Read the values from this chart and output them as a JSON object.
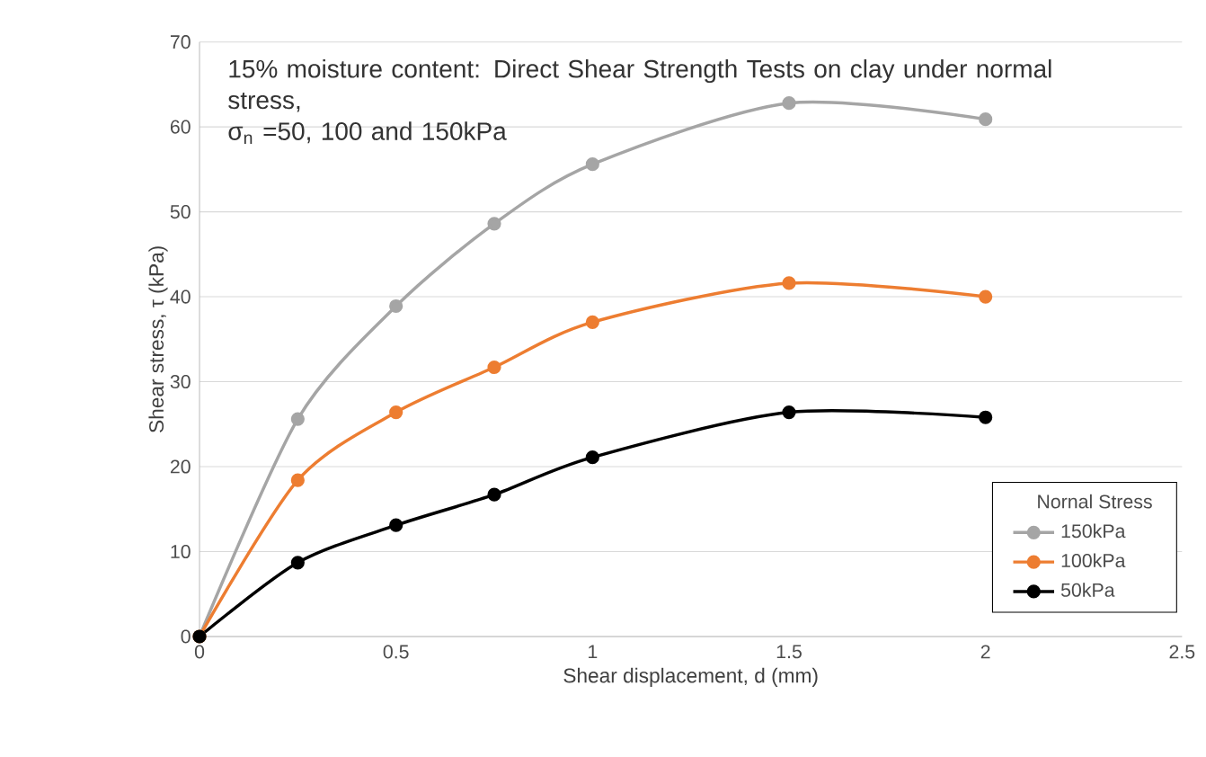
{
  "chart_data": {
    "type": "line",
    "title": "15% moisture content: Direct Shear Strength Tests on clay under normal stress,",
    "subtitle": "σ$_{n}$ =50, 100 and 150kPa",
    "xlabel": "Shear displacement, d (mm)",
    "ylabel": "Shear stress, τ (kPa)",
    "legend_title": "Nornal Stress",
    "x": [
      0,
      0.25,
      0.5,
      0.75,
      1,
      1.5,
      2
    ],
    "series": [
      {
        "name": "150kPa",
        "color": "#a5a5a5",
        "values": [
          0,
          25.6,
          38.9,
          48.6,
          55.6,
          62.8,
          60.9
        ]
      },
      {
        "name": "100kPa",
        "color": "#ed7d31",
        "values": [
          0,
          18.4,
          26.4,
          31.7,
          37,
          41.6,
          40
        ]
      },
      {
        "name": "50kPa",
        "color": "#000000",
        "values": [
          0,
          8.7,
          13.1,
          16.7,
          21.1,
          26.4,
          25.8
        ]
      }
    ],
    "xlim": [
      0,
      2.5
    ],
    "xticks": [
      0,
      0.5,
      1,
      1.5,
      2,
      2.5
    ],
    "ylim": [
      0,
      70
    ],
    "yticks": [
      0,
      10,
      20,
      30,
      40,
      50,
      60,
      70
    ],
    "grid": "y",
    "legend": "bottom right",
    "marker": "circle",
    "line_style": "solid"
  }
}
